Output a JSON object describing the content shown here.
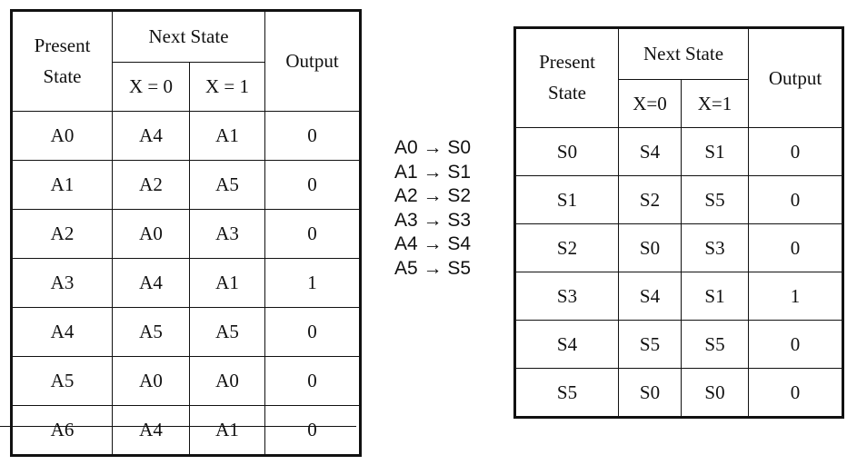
{
  "left_table": {
    "headers": {
      "present_state": "Present\nState",
      "next_state": "Next State",
      "x0": "X = 0",
      "x1": "X = 1",
      "output": "Output"
    },
    "rows": [
      {
        "state": "A0",
        "x0": "A4",
        "x1": "A1",
        "out": "0"
      },
      {
        "state": "A1",
        "x0": "A2",
        "x1": "A5",
        "out": "0"
      },
      {
        "state": "A2",
        "x0": "A0",
        "x1": "A3",
        "out": "0"
      },
      {
        "state": "A3",
        "x0": "A4",
        "x1": "A1",
        "out": "1"
      },
      {
        "state": "A4",
        "x0": "A5",
        "x1": "A5",
        "out": "0"
      },
      {
        "state": "A5",
        "x0": "A0",
        "x1": "A0",
        "out": "0"
      },
      {
        "state": "A6",
        "x0": "A4",
        "x1": "A1",
        "out": "0"
      }
    ]
  },
  "mapping": [
    "A0 → S0",
    "A1 → S1",
    "A2 → S2",
    "A3 → S3",
    "A4 → S4",
    "A5 → S5"
  ],
  "right_table": {
    "headers": {
      "present_state": "Present\nState",
      "next_state": "Next State",
      "x0": "X=0",
      "x1": "X=1",
      "output": "Output"
    },
    "rows": [
      {
        "state": "S0",
        "x0": "S4",
        "x1": "S1",
        "out": "0"
      },
      {
        "state": "S1",
        "x0": "S2",
        "x1": "S5",
        "out": "0"
      },
      {
        "state": "S2",
        "x0": "S0",
        "x1": "S3",
        "out": "0"
      },
      {
        "state": "S3",
        "x0": "S4",
        "x1": "S1",
        "out": "1"
      },
      {
        "state": "S4",
        "x0": "S5",
        "x1": "S5",
        "out": "0"
      },
      {
        "state": "S5",
        "x0": "S0",
        "x1": "S0",
        "out": "0"
      }
    ]
  }
}
